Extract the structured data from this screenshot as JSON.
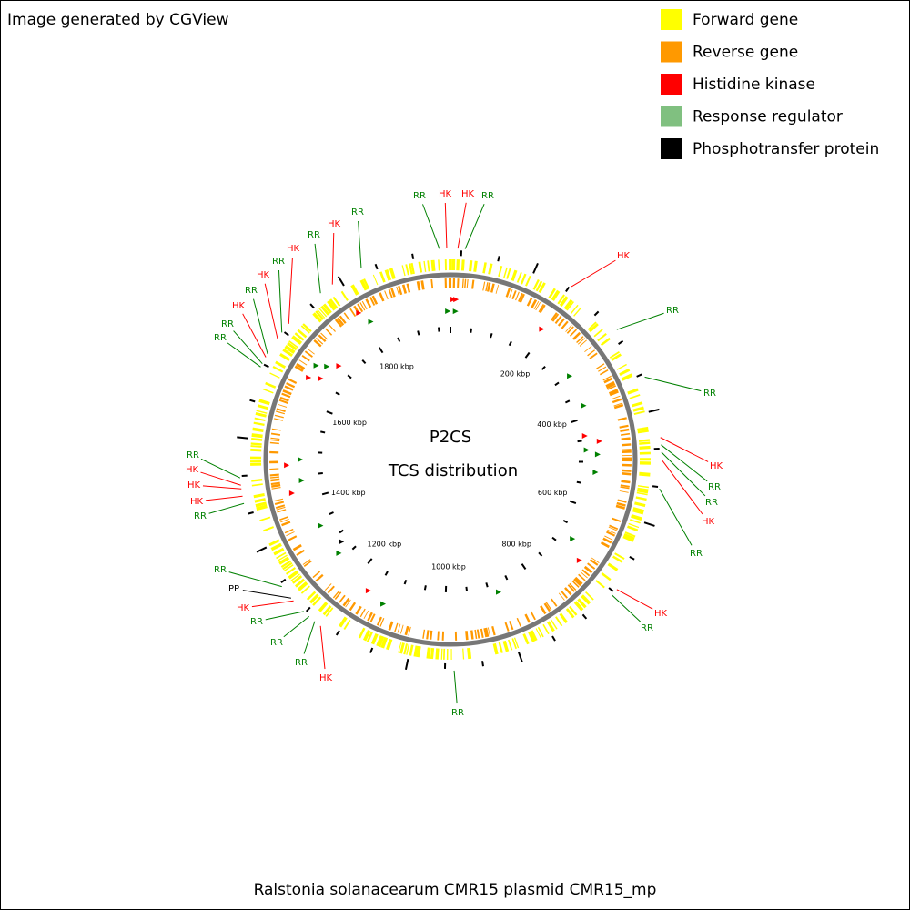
{
  "header": {
    "credit": "Image generated by CGView"
  },
  "legend": [
    {
      "label": "Forward gene",
      "color": "#ffff00"
    },
    {
      "label": "Reverse gene",
      "color": "#ff9900"
    },
    {
      "label": "Histidine kinase",
      "color": "#ff0000"
    },
    {
      "label": "Response regulator",
      "color": "#80c080"
    },
    {
      "label": "Phosphotransfer protein",
      "color": "#000000"
    }
  ],
  "map": {
    "title": "P2CS",
    "subtitle": "TCS distribution",
    "tick_labels": [
      "200 kbp",
      "400 kbp",
      "600 kbp",
      "800 kbp",
      "1000 kbp",
      "1200 kbp",
      "1400 kbp",
      "1600 kbp",
      "1800 kbp"
    ],
    "feature_labels": [
      {
        "label": "RR",
        "color": "#008000"
      },
      {
        "label": "HK",
        "color": "#ff0000"
      },
      {
        "label": "HK",
        "color": "#ff0000"
      },
      {
        "label": "RR",
        "color": "#008000"
      },
      {
        "label": "HK",
        "color": "#ff0000"
      },
      {
        "label": "RR",
        "color": "#008000"
      },
      {
        "label": "RR",
        "color": "#008000"
      },
      {
        "label": "HK",
        "color": "#ff0000"
      },
      {
        "label": "RR",
        "color": "#008000"
      },
      {
        "label": "RR",
        "color": "#008000"
      },
      {
        "label": "HK",
        "color": "#ff0000"
      },
      {
        "label": "RR",
        "color": "#008000"
      },
      {
        "label": "HK",
        "color": "#ff0000"
      },
      {
        "label": "RR",
        "color": "#008000"
      },
      {
        "label": "RR",
        "color": "#008000"
      },
      {
        "label": "HK",
        "color": "#ff0000"
      },
      {
        "label": "RR",
        "color": "#008000"
      },
      {
        "label": "RR",
        "color": "#008000"
      },
      {
        "label": "RR",
        "color": "#008000"
      },
      {
        "label": "HK",
        "color": "#ff0000"
      },
      {
        "label": "PP",
        "color": "#000000"
      },
      {
        "label": "RR",
        "color": "#008000"
      },
      {
        "label": "RR",
        "color": "#008000"
      },
      {
        "label": "HK",
        "color": "#ff0000"
      },
      {
        "label": "HK",
        "color": "#ff0000"
      },
      {
        "label": "HK",
        "color": "#ff0000"
      },
      {
        "label": "RR",
        "color": "#008000"
      },
      {
        "label": "RR",
        "color": "#008000"
      },
      {
        "label": "RR",
        "color": "#008000"
      },
      {
        "label": "HK",
        "color": "#ff0000"
      },
      {
        "label": "RR",
        "color": "#008000"
      },
      {
        "label": "HK",
        "color": "#ff0000"
      },
      {
        "label": "RR",
        "color": "#008000"
      },
      {
        "label": "HK",
        "color": "#ff0000"
      },
      {
        "label": "RR",
        "color": "#008000"
      },
      {
        "label": "HK",
        "color": "#ff0000"
      },
      {
        "label": "RR",
        "color": "#008000"
      }
    ]
  },
  "footer": "Ralstonia solanacearum CMR15 plasmid CMR15_mp"
}
